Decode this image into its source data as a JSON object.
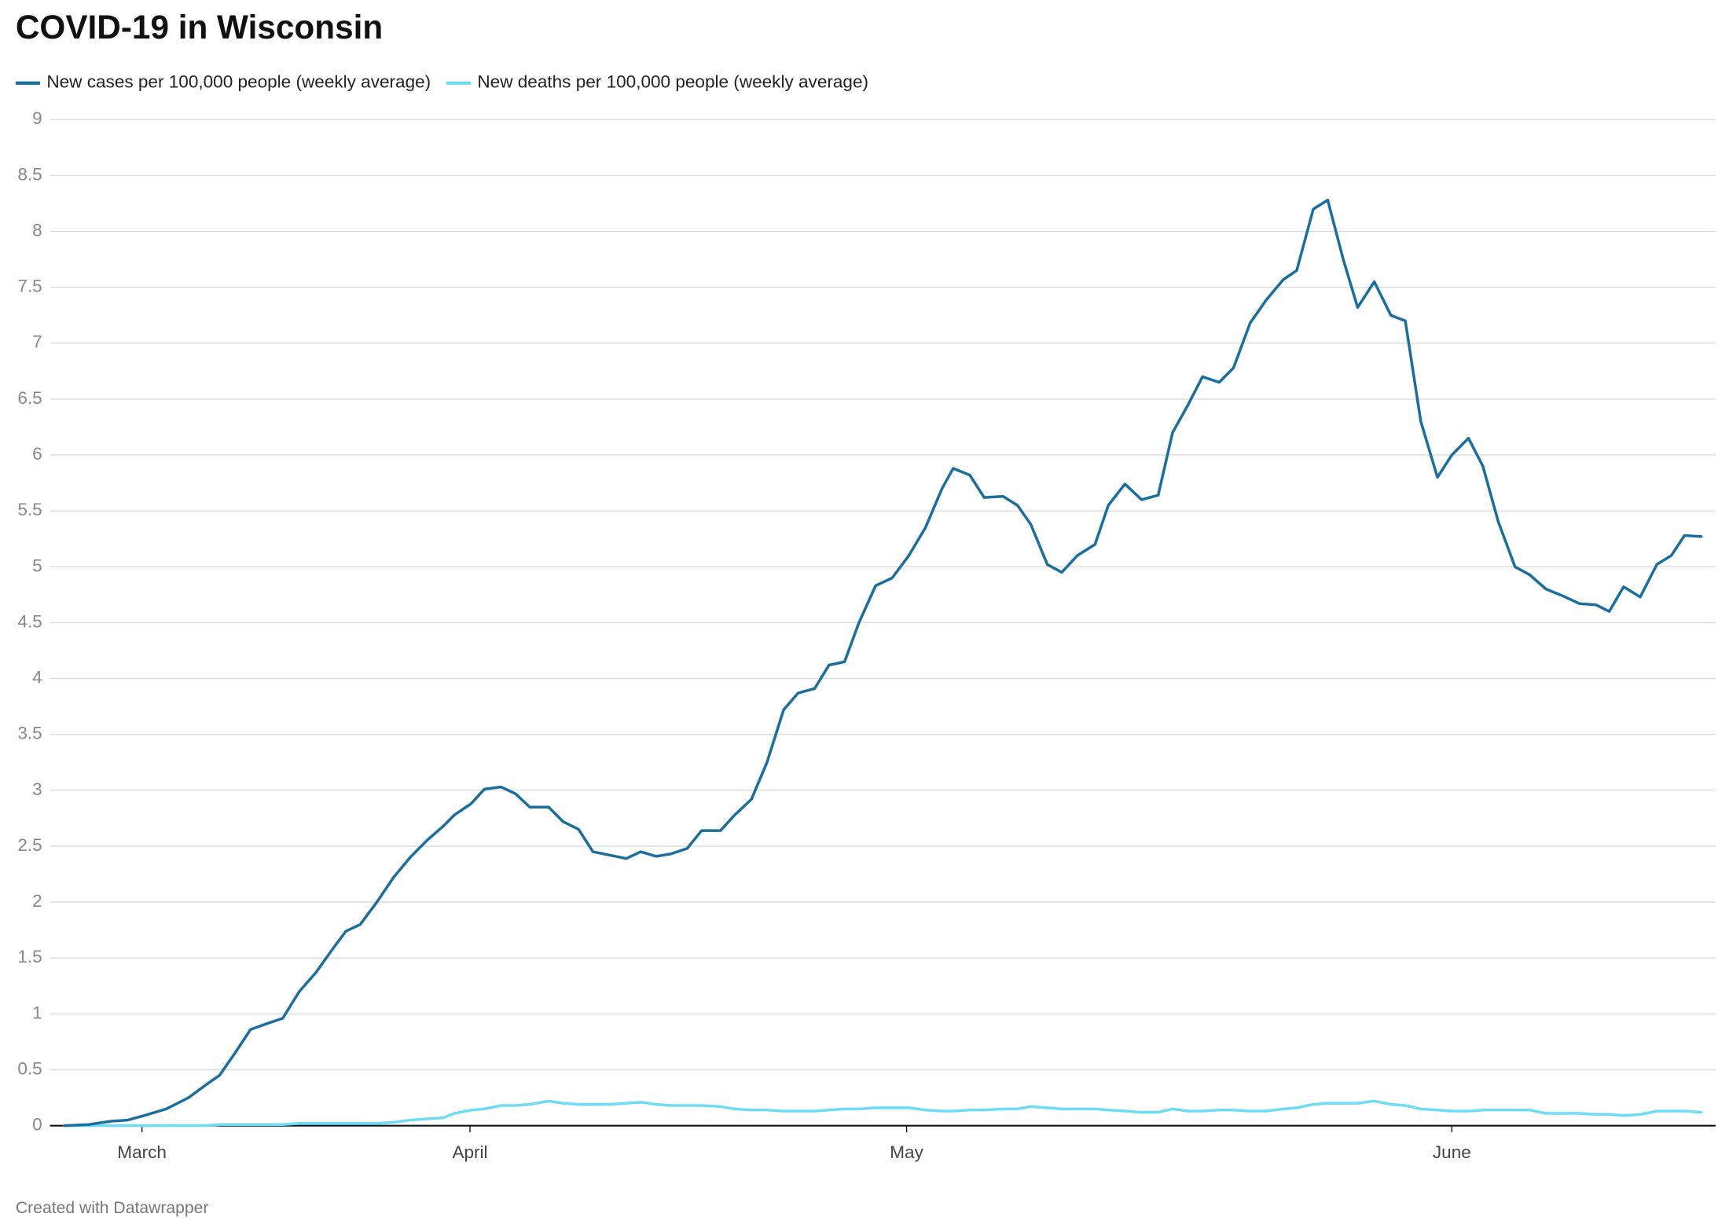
{
  "chart_data": {
    "type": "line",
    "title": "COVID-19 in Wisconsin",
    "credit": "Created with Datawrapper",
    "x": [
      0,
      2.2,
      4.2,
      5.7,
      7.2,
      9.2,
      11.2,
      12.7,
      14,
      15.4,
      16.8,
      18.2,
      19.7,
      21.2,
      22.7,
      24.2,
      25.4,
      26.7,
      28.2,
      29.7,
      31.2,
      32.7,
      34.2,
      35.2,
      36.7,
      37.9,
      39.4,
      40.7,
      42,
      43.7,
      45,
      46.4,
      47.7,
      49.2,
      50.7,
      52,
      53.4,
      54.7,
      56.2,
      57.5,
      59.2,
      60.5,
      62,
      63.4,
      64.9,
      66.2,
      67.7,
      69,
      70.4,
      71.7,
      73.2,
      74.7,
      76.2,
      77.7,
      79.2,
      80.2,
      81.7,
      83,
      84.7,
      86,
      87.2,
      88.7,
      90,
      91.4,
      93,
      94.2,
      95.7,
      97.2,
      98.7,
      100,
      101.4,
      102.7,
      104.2,
      105.5,
      107,
      108.4,
      110,
      111.2,
      112.7,
      114,
      115.4,
      116.7,
      118.2,
      119.7,
      121,
      122.4,
      123.9,
      125.2,
      126.7,
      128,
      129.4,
      130.9,
      132.2,
      133.7,
      135.2,
      136.7,
      138.2,
      139.4,
      140.7,
      142.2,
      143.7,
      145,
      146.2,
      147.7
    ],
    "series": [
      {
        "name": "New cases per 100,000 people (weekly average)",
        "color": "#1a6fa0",
        "values": [
          0,
          0.01,
          0.04,
          0.05,
          0.09,
          0.15,
          0.25,
          0.36,
          0.45,
          0.65,
          0.86,
          0.91,
          0.96,
          1.2,
          1.37,
          1.58,
          1.74,
          1.8,
          2.0,
          2.22,
          2.4,
          2.55,
          2.68,
          2.78,
          2.88,
          3.01,
          3.03,
          2.97,
          2.85,
          2.85,
          2.72,
          2.65,
          2.45,
          2.42,
          2.39,
          2.45,
          2.41,
          2.43,
          2.48,
          2.64,
          2.64,
          2.78,
          2.92,
          3.25,
          3.72,
          3.87,
          3.91,
          4.12,
          4.15,
          4.5,
          4.83,
          4.9,
          5.1,
          5.35,
          5.7,
          5.88,
          5.82,
          5.62,
          5.63,
          5.55,
          5.38,
          5.02,
          4.95,
          5.1,
          5.2,
          5.55,
          5.74,
          5.6,
          5.64,
          6.2,
          6.45,
          6.7,
          6.65,
          6.78,
          7.18,
          7.38,
          7.57,
          7.65,
          8.2,
          8.28,
          7.75,
          7.32,
          7.55,
          7.25,
          7.2,
          6.3,
          5.8,
          6.0,
          6.15,
          5.9,
          5.4,
          5.0,
          4.93,
          4.8,
          4.74,
          4.67,
          4.66,
          4.6,
          4.82,
          4.73,
          5.02,
          5.1,
          5.28,
          5.27
        ]
      },
      {
        "name": "New deaths per 100,000 people (weekly average)",
        "color": "#6fdcf5",
        "values": [
          0,
          0,
          0,
          0,
          0,
          0,
          0,
          0,
          0.01,
          0.01,
          0.01,
          0.01,
          0.01,
          0.02,
          0.02,
          0.02,
          0.02,
          0.02,
          0.02,
          0.03,
          0.05,
          0.06,
          0.07,
          0.11,
          0.14,
          0.15,
          0.18,
          0.18,
          0.19,
          0.22,
          0.2,
          0.19,
          0.19,
          0.19,
          0.2,
          0.21,
          0.19,
          0.18,
          0.18,
          0.18,
          0.17,
          0.15,
          0.14,
          0.14,
          0.13,
          0.13,
          0.13,
          0.14,
          0.15,
          0.15,
          0.16,
          0.16,
          0.16,
          0.14,
          0.13,
          0.13,
          0.14,
          0.14,
          0.15,
          0.15,
          0.17,
          0.16,
          0.15,
          0.15,
          0.15,
          0.14,
          0.13,
          0.12,
          0.12,
          0.15,
          0.13,
          0.13,
          0.14,
          0.14,
          0.13,
          0.13,
          0.15,
          0.16,
          0.19,
          0.2,
          0.2,
          0.2,
          0.22,
          0.19,
          0.18,
          0.15,
          0.14,
          0.13,
          0.13,
          0.14,
          0.14,
          0.14,
          0.14,
          0.11,
          0.11,
          0.11,
          0.1,
          0.1,
          0.09,
          0.1,
          0.13,
          0.13,
          0.13,
          0.12
        ]
      }
    ],
    "xlim": [
      -1.3,
      149
    ],
    "xticks": [
      {
        "value": 7,
        "label": "March"
      },
      {
        "value": 36.6,
        "label": "April"
      },
      {
        "value": 76,
        "label": "May"
      },
      {
        "value": 125.2,
        "label": "June"
      }
    ],
    "ylim": [
      0,
      9
    ],
    "yticks": [
      0,
      0.5,
      1,
      1.5,
      2,
      2.5,
      3,
      3.5,
      4,
      4.5,
      5,
      5.5,
      6,
      6.5,
      7,
      7.5,
      8,
      8.5,
      9
    ],
    "grid": true,
    "legend": "top"
  }
}
